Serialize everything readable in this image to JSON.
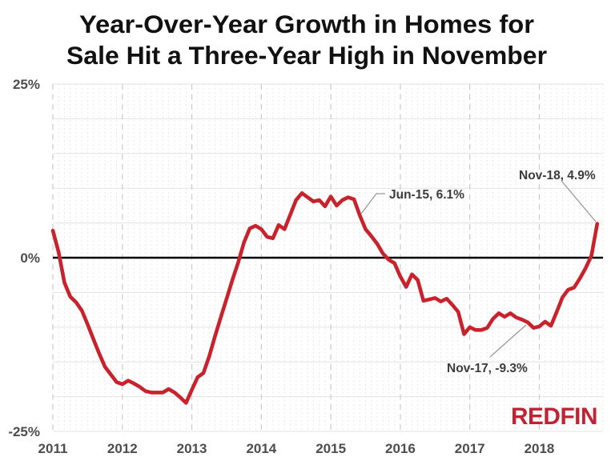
{
  "title": {
    "line1": "Year-Over-Year Growth in Homes for",
    "line2": "Sale Hit a Three-Year High in November"
  },
  "branding": {
    "logo_text": "REDFIN",
    "logo_color": "#c02334"
  },
  "chart_data": {
    "type": "line",
    "title": "Year-Over-Year Growth in Homes for Sale Hit a Three-Year High in November",
    "series_name": "Year-over-year growth in homes for sale",
    "x_unit": "month",
    "x_range": [
      "2011-01",
      "2018-11"
    ],
    "x_tick_labels": [
      "2011",
      "2012",
      "2013",
      "2014",
      "2015",
      "2016",
      "2017",
      "2018"
    ],
    "y_tick_labels": [
      {
        "text": "25%",
        "value": 25
      },
      {
        "text": "0%",
        "value": 0
      },
      {
        "text": "-25%",
        "value": -25
      }
    ],
    "ylim": [
      -25,
      25
    ],
    "grid_step_pct": 5,
    "grid": true,
    "legend": false,
    "line_color": "#c8232c",
    "zero_line_color": "#000000",
    "values": [
      3.9,
      0.8,
      -3.6,
      -5.6,
      -6.4,
      -7.6,
      -9.6,
      -11.7,
      -13.8,
      -15.7,
      -16.8,
      -17.9,
      -18.2,
      -17.7,
      -18.1,
      -18.6,
      -19.2,
      -19.4,
      -19.4,
      -19.4,
      -18.9,
      -19.4,
      -20.1,
      -20.9,
      -19.0,
      -17.2,
      -16.6,
      -14.2,
      -11.3,
      -8.6,
      -5.9,
      -3.2,
      -0.7,
      2.2,
      4.2,
      4.6,
      4.1,
      3.0,
      2.8,
      4.7,
      4.1,
      6.2,
      8.3,
      9.3,
      8.7,
      8.1,
      8.3,
      7.4,
      8.8,
      7.5,
      8.3,
      8.7,
      8.4,
      6.1,
      4.1,
      3.1,
      2.0,
      0.6,
      -0.3,
      -0.8,
      -2.7,
      -4.2,
      -2.4,
      -3.2,
      -6.2,
      -6.0,
      -5.8,
      -6.3,
      -5.9,
      -6.8,
      -7.8,
      -11.0,
      -10.0,
      -10.4,
      -10.4,
      -10.1,
      -8.8,
      -8.0,
      -8.5,
      -8.0,
      -8.6,
      -8.9,
      -9.3,
      -10.1,
      -9.9,
      -9.2,
      -9.8,
      -7.8,
      -5.7,
      -4.6,
      -4.3,
      -3.0,
      -1.5,
      0.3,
      4.9
    ],
    "annotations": [
      {
        "label": "Jun-15, 6.1%",
        "x": "2015-06",
        "value": 6.1
      },
      {
        "label": "Nov-17, -9.3%",
        "x": "2017-11",
        "value": -9.3
      },
      {
        "label": "Nov-18, 4.9%",
        "x": "2018-11",
        "value": 4.9
      }
    ]
  }
}
